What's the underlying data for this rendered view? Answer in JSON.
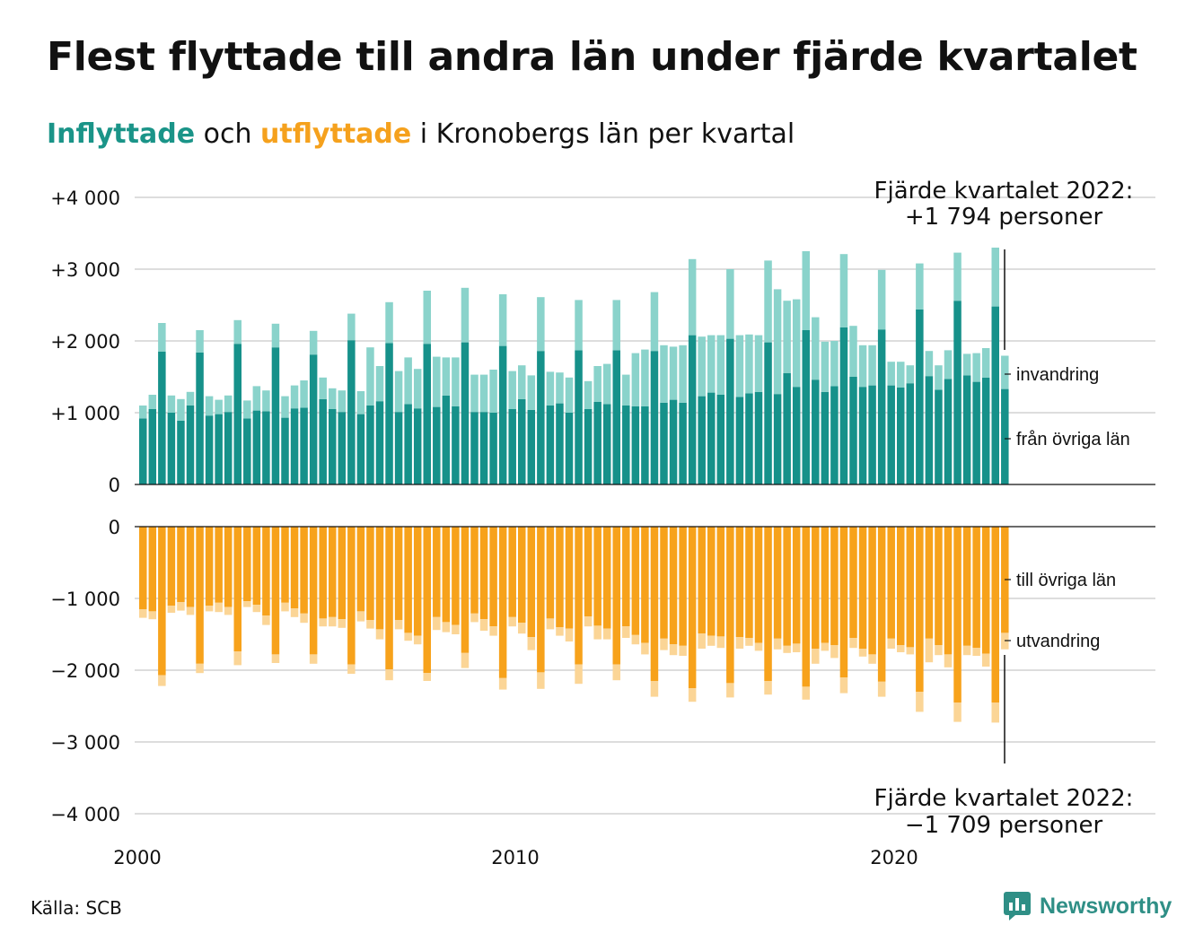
{
  "title": "Flest flyttade till andra län under fjärde kvartalet",
  "subtitle": {
    "in_word": "Inflyttade",
    "mid": " och ",
    "out_word": "utflyttade",
    "rest": " i Kronobergs län per kvartal"
  },
  "source": "Källa: SCB",
  "brand": "Newsworthy",
  "colors": {
    "in_domestic": "#16918a",
    "in_immigration": "#8ad3cb",
    "out_domestic": "#f7a21b",
    "out_emigration": "#fbd596",
    "grid": "#dddddd",
    "title_in": "#1a9488",
    "title_out": "#f5a11d",
    "brand": "#2f8f86"
  },
  "annotations": {
    "top_line1": "Fjärde kvartalet 2022:",
    "top_line2": "+1 794 personer",
    "bottom_line1": "Fjärde kvartalet 2022:",
    "bottom_line2": "−1 709 personer"
  },
  "chart_data": {
    "type": "bar",
    "stacked": true,
    "x_start": "2000 Q1",
    "x_end": "2022 Q4",
    "x_ticks": [
      "2000",
      "2010",
      "2020"
    ],
    "top_panel": {
      "y_ticks": [
        "+4 000",
        "+3 000",
        "+2 000",
        "+1 000",
        "0"
      ],
      "ylim": [
        0,
        4000
      ],
      "series": [
        {
          "name": "från övriga län",
          "values": [
            920,
            1050,
            1850,
            1000,
            890,
            1100,
            1840,
            960,
            980,
            1010,
            1960,
            920,
            1030,
            1020,
            1910,
            930,
            1060,
            1070,
            1810,
            1190,
            1050,
            1010,
            2010,
            980,
            1100,
            1160,
            1970,
            1010,
            1120,
            1060,
            1960,
            1080,
            1240,
            1090,
            1980,
            1010,
            1010,
            1000,
            1930,
            1050,
            1190,
            1040,
            1860,
            1100,
            1130,
            1000,
            1870,
            1050,
            1150,
            1120,
            1870,
            1100,
            1090,
            1090,
            1860,
            1140,
            1180,
            1140,
            2080,
            1230,
            1280,
            1250,
            2030,
            1220,
            1270,
            1290,
            1980,
            1260,
            1550,
            1360,
            2150,
            1460,
            1290,
            1370,
            2190,
            1500,
            1360,
            1380,
            2160,
            1380,
            1350,
            1410,
            2440,
            1510,
            1320,
            1470,
            2560,
            1520,
            1430,
            1490,
            2480,
            1330
          ]
        },
        {
          "name": "invandring",
          "values": [
            180,
            200,
            400,
            240,
            300,
            190,
            310,
            270,
            200,
            230,
            330,
            250,
            340,
            290,
            330,
            300,
            320,
            380,
            330,
            300,
            290,
            300,
            370,
            320,
            810,
            490,
            570,
            570,
            650,
            550,
            740,
            700,
            530,
            680,
            760,
            520,
            520,
            600,
            720,
            530,
            470,
            480,
            750,
            470,
            430,
            490,
            700,
            390,
            500,
            560,
            700,
            430,
            740,
            790,
            820,
            800,
            740,
            800,
            1060,
            830,
            800,
            830,
            970,
            860,
            820,
            790,
            1140,
            1460,
            1010,
            1220,
            1100,
            870,
            700,
            630,
            1020,
            710,
            580,
            560,
            830,
            330,
            360,
            250,
            640,
            350,
            340,
            400,
            670,
            300,
            400,
            410,
            820,
            464
          ]
        }
      ]
    },
    "bottom_panel": {
      "y_ticks": [
        "0",
        "−1 000",
        "−2 000",
        "−3 000",
        "−4 000"
      ],
      "ylim": [
        -4000,
        0
      ],
      "series": [
        {
          "name": "till övriga län",
          "values": [
            -1150,
            -1180,
            -2070,
            -1100,
            -1050,
            -1120,
            -1910,
            -1100,
            -1060,
            -1120,
            -1740,
            -1040,
            -1090,
            -1240,
            -1780,
            -1060,
            -1140,
            -1210,
            -1780,
            -1280,
            -1260,
            -1290,
            -1920,
            -1180,
            -1300,
            -1430,
            -1990,
            -1300,
            -1480,
            -1520,
            -2040,
            -1260,
            -1330,
            -1370,
            -1760,
            -1210,
            -1290,
            -1390,
            -2110,
            -1260,
            -1340,
            -1540,
            -2030,
            -1280,
            -1400,
            -1420,
            -1920,
            -1250,
            -1380,
            -1420,
            -1920,
            -1390,
            -1510,
            -1620,
            -2150,
            -1560,
            -1640,
            -1660,
            -2250,
            -1490,
            -1520,
            -1530,
            -2180,
            -1540,
            -1550,
            -1620,
            -2150,
            -1560,
            -1660,
            -1630,
            -2230,
            -1700,
            -1620,
            -1650,
            -2100,
            -1550,
            -1700,
            -1780,
            -2160,
            -1560,
            -1650,
            -1680,
            -2300,
            -1560,
            -1650,
            -1780,
            -2450,
            -1660,
            -1690,
            -1770,
            -2450,
            -1480
          ]
        },
        {
          "name": "utvandring",
          "values": [
            -120,
            -110,
            -150,
            -100,
            -120,
            -110,
            -130,
            -80,
            -130,
            -110,
            -190,
            -80,
            -100,
            -130,
            -120,
            -120,
            -120,
            -130,
            -130,
            -110,
            -130,
            -120,
            -130,
            -140,
            -120,
            -140,
            -150,
            -130,
            -110,
            -120,
            -110,
            -180,
            -140,
            -130,
            -210,
            -120,
            -160,
            -130,
            -160,
            -130,
            -150,
            -180,
            -230,
            -150,
            -120,
            -180,
            -270,
            -140,
            -190,
            -150,
            -220,
            -160,
            -130,
            -160,
            -220,
            -160,
            -150,
            -140,
            -190,
            -210,
            -140,
            -160,
            -200,
            -160,
            -110,
            -110,
            -190,
            -150,
            -100,
            -120,
            -180,
            -210,
            -110,
            -180,
            -220,
            -140,
            -110,
            -130,
            -210,
            -140,
            -100,
            -100,
            -280,
            -330,
            -140,
            -180,
            -270,
            -130,
            -110,
            -180,
            -280,
            -229
          ]
        }
      ]
    }
  },
  "series_labels": {
    "in_immigration": "invandring",
    "in_domestic": "från övriga län",
    "out_domestic": "till övriga län",
    "out_emigration": "utvandring"
  }
}
